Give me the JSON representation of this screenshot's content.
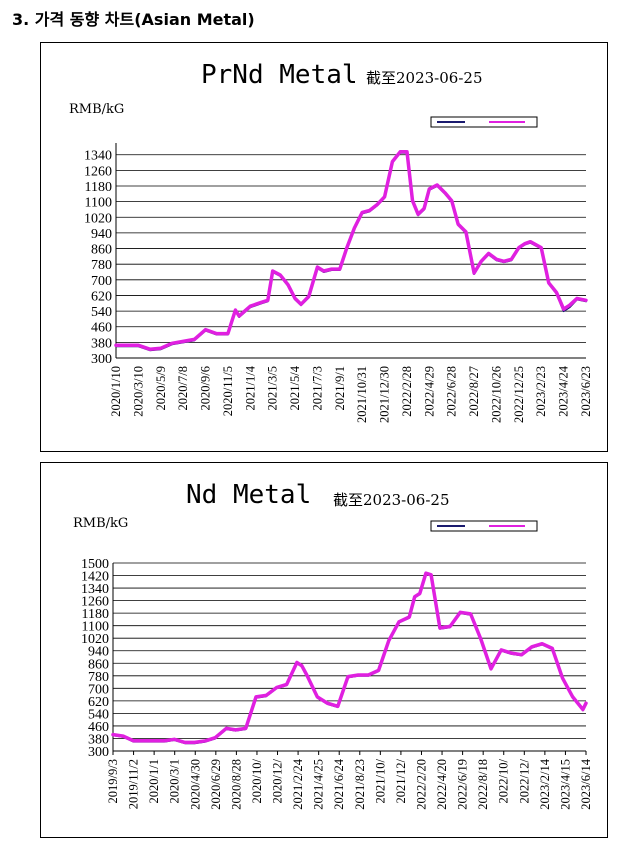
{
  "section": {
    "title": "3. 가격 동향 차트(Asian Metal)"
  },
  "chart_data": [
    {
      "type": "line",
      "title": "PrNd Metal",
      "subtitle": "截至2023-06-25",
      "ylabel": "RMB/kG",
      "ylim": [
        300,
        1400
      ],
      "yticks": [
        300,
        380,
        460,
        540,
        620,
        700,
        780,
        860,
        940,
        1020,
        1100,
        1180,
        1260,
        1340
      ],
      "grid": true,
      "legend_position": "top-right",
      "xtick_labels": [
        "2020/1/10",
        "2020/3/10",
        "2020/5/9",
        "2020/7/8",
        "2020/9/6",
        "2020/11/5",
        "2021/1/4",
        "2021/3/5",
        "2021/5/4",
        "2021/7/3",
        "2021/9/1",
        "2021/10/31",
        "2021/12/30",
        "2022/2/28",
        "2022/4/29",
        "2022/6/28",
        "2022/8/27",
        "2022/10/26",
        "2022/12/25",
        "2023/2/23",
        "2023/4/24",
        "2023/6/23"
      ],
      "series": [
        {
          "name": "",
          "color": "#1a1a6e",
          "x": [
            "2020/1/10",
            "2020/3/10",
            "2020/4/10",
            "2020/5/9",
            "2020/6/8",
            "2020/7/8",
            "2020/8/7",
            "2020/9/6",
            "2020/10/6",
            "2020/11/5",
            "2020/11/25",
            "2020/12/5",
            "2021/1/4",
            "2021/2/3",
            "2021/2/20",
            "2021/3/5",
            "2021/3/25",
            "2021/4/15",
            "2021/5/4",
            "2021/5/20",
            "2021/6/10",
            "2021/7/3",
            "2021/7/20",
            "2021/8/10",
            "2021/9/1",
            "2021/9/20",
            "2021/10/10",
            "2021/10/31",
            "2021/11/20",
            "2021/12/10",
            "2021/12/30",
            "2022/1/20",
            "2022/2/10",
            "2022/2/28",
            "2022/3/15",
            "2022/3/30",
            "2022/4/15",
            "2022/4/29",
            "2022/5/20",
            "2022/6/10",
            "2022/6/28",
            "2022/7/15",
            "2022/8/5",
            "2022/8/27",
            "2022/9/15",
            "2022/10/5",
            "2022/10/26",
            "2022/11/15",
            "2022/12/5",
            "2022/12/25",
            "2023/1/10",
            "2023/1/25",
            "2023/2/23",
            "2023/3/15",
            "2023/4/5",
            "2023/4/24",
            "2023/5/10",
            "2023/5/30",
            "2023/6/23"
          ],
          "values": [
            360,
            360,
            340,
            345,
            370,
            380,
            390,
            440,
            420,
            420,
            540,
            510,
            560,
            580,
            590,
            740,
            720,
            670,
            600,
            570,
            610,
            760,
            740,
            750,
            750,
            860,
            960,
            1040,
            1050,
            1080,
            1120,
            1300,
            1350,
            1350,
            1100,
            1030,
            1060,
            1160,
            1180,
            1140,
            1100,
            980,
            940,
            730,
            790,
            830,
            800,
            790,
            800,
            860,
            880,
            890,
            860,
            680,
            630,
            540,
            560,
            600,
            590
          ]
        },
        {
          "name": "",
          "color": "#e020e0",
          "x": [
            "2020/1/10",
            "2020/3/10",
            "2020/4/10",
            "2020/5/9",
            "2020/6/8",
            "2020/7/8",
            "2020/8/7",
            "2020/9/6",
            "2020/10/6",
            "2020/11/5",
            "2020/11/25",
            "2020/12/5",
            "2021/1/4",
            "2021/2/3",
            "2021/2/20",
            "2021/3/5",
            "2021/3/25",
            "2021/4/15",
            "2021/5/4",
            "2021/5/20",
            "2021/6/10",
            "2021/7/3",
            "2021/7/20",
            "2021/8/10",
            "2021/9/1",
            "2021/9/20",
            "2021/10/10",
            "2021/10/31",
            "2021/11/20",
            "2021/12/10",
            "2021/12/30",
            "2022/1/20",
            "2022/2/10",
            "2022/2/28",
            "2022/3/15",
            "2022/3/30",
            "2022/4/15",
            "2022/4/29",
            "2022/5/20",
            "2022/6/10",
            "2022/6/28",
            "2022/7/15",
            "2022/8/5",
            "2022/8/27",
            "2022/9/15",
            "2022/10/5",
            "2022/10/26",
            "2022/11/15",
            "2022/12/5",
            "2022/12/25",
            "2023/1/10",
            "2023/1/25",
            "2023/2/23",
            "2023/3/15",
            "2023/4/5",
            "2023/4/24",
            "2023/5/10",
            "2023/5/30",
            "2023/6/23"
          ],
          "values": [
            365,
            365,
            345,
            350,
            375,
            385,
            395,
            445,
            425,
            425,
            545,
            515,
            565,
            585,
            595,
            745,
            725,
            675,
            605,
            575,
            615,
            765,
            745,
            755,
            755,
            865,
            965,
            1045,
            1055,
            1085,
            1125,
            1305,
            1355,
            1355,
            1105,
            1035,
            1065,
            1165,
            1185,
            1145,
            1105,
            985,
            945,
            735,
            795,
            835,
            805,
            795,
            805,
            865,
            885,
            895,
            865,
            685,
            635,
            550,
            570,
            605,
            595
          ]
        }
      ]
    },
    {
      "type": "line",
      "title": "Nd Metal",
      "subtitle": "截至2023-06-25",
      "ylabel": "RMB/kG",
      "ylim": [
        300,
        1500
      ],
      "yticks": [
        300,
        380,
        460,
        540,
        620,
        700,
        780,
        860,
        940,
        1020,
        1100,
        1180,
        1260,
        1340,
        1420,
        1500
      ],
      "grid": true,
      "legend_position": "top-right",
      "xtick_labels": [
        "2019/9/3",
        "2019/11/2",
        "2020/1/1",
        "2020/3/1",
        "2020/4/30",
        "2020/6/29",
        "2020/8/28",
        "2020/10/",
        "2020/12/",
        "2021/2/24",
        "2021/4/25",
        "2021/6/24",
        "2021/8/23",
        "2021/10/",
        "2021/12/",
        "2022/2/20",
        "2022/4/20",
        "2022/6/19",
        "2022/8/18",
        "2022/10/",
        "2022/12/",
        "2023/2/14",
        "2023/4/15",
        "2023/6/14"
      ],
      "series": [
        {
          "name": "",
          "color": "#1a1a6e",
          "x": [
            "2019/9/3",
            "2019/10/3",
            "2019/11/2",
            "2020/1/1",
            "2020/2/1",
            "2020/3/1",
            "2020/4/1",
            "2020/4/30",
            "2020/6/1",
            "2020/6/29",
            "2020/8/1",
            "2020/8/28",
            "2020/9/27",
            "2020/10/27",
            "2020/11/26",
            "2020/12/26",
            "2021/1/25",
            "2021/2/24",
            "2021/3/10",
            "2021/3/25",
            "2021/4/25",
            "2021/5/25",
            "2021/6/24",
            "2021/7/24",
            "2021/8/23",
            "2021/9/22",
            "2021/10/22",
            "2021/11/21",
            "2021/12/21",
            "2022/1/20",
            "2022/2/5",
            "2022/2/20",
            "2022/3/10",
            "2022/3/25",
            "2022/4/20",
            "2022/5/20",
            "2022/6/19",
            "2022/7/19",
            "2022/8/18",
            "2022/9/17",
            "2022/10/17",
            "2022/11/16",
            "2022/12/16",
            "2023/1/15",
            "2023/2/14",
            "2023/3/16",
            "2023/4/15",
            "2023/5/15",
            "2023/6/14",
            "2023/6/23"
          ],
          "values": [
            400,
            390,
            360,
            360,
            360,
            370,
            350,
            350,
            360,
            380,
            440,
            430,
            440,
            640,
            650,
            700,
            720,
            860,
            840,
            780,
            640,
            600,
            580,
            770,
            780,
            780,
            810,
            1000,
            1120,
            1150,
            1280,
            1300,
            1430,
            1420,
            1080,
            1090,
            1180,
            1170,
            1010,
            820,
            940,
            920,
            910,
            960,
            980,
            950,
            760,
            640,
            560,
            600
          ]
        },
        {
          "name": "",
          "color": "#e020e0",
          "x": [
            "2019/9/3",
            "2019/10/3",
            "2019/11/2",
            "2020/1/1",
            "2020/2/1",
            "2020/3/1",
            "2020/4/1",
            "2020/4/30",
            "2020/6/1",
            "2020/6/29",
            "2020/8/1",
            "2020/8/28",
            "2020/9/27",
            "2020/10/27",
            "2020/11/26",
            "2020/12/26",
            "2021/1/25",
            "2021/2/24",
            "2021/3/10",
            "2021/3/25",
            "2021/4/25",
            "2021/5/25",
            "2021/6/24",
            "2021/7/24",
            "2021/8/23",
            "2021/9/22",
            "2021/10/22",
            "2021/11/21",
            "2021/12/21",
            "2022/1/20",
            "2022/2/5",
            "2022/2/20",
            "2022/3/10",
            "2022/3/25",
            "2022/4/20",
            "2022/5/20",
            "2022/6/19",
            "2022/7/19",
            "2022/8/18",
            "2022/9/17",
            "2022/10/17",
            "2022/11/16",
            "2022/12/16",
            "2023/1/15",
            "2023/2/14",
            "2023/3/16",
            "2023/4/15",
            "2023/5/15",
            "2023/6/14",
            "2023/6/23"
          ],
          "values": [
            405,
            395,
            365,
            365,
            365,
            375,
            355,
            355,
            365,
            385,
            445,
            435,
            445,
            645,
            655,
            705,
            725,
            865,
            845,
            785,
            645,
            605,
            585,
            775,
            785,
            785,
            815,
            1005,
            1125,
            1155,
            1285,
            1305,
            1435,
            1425,
            1085,
            1095,
            1185,
            1175,
            1015,
            825,
            945,
            925,
            915,
            965,
            985,
            955,
            765,
            645,
            565,
            605
          ]
        }
      ]
    }
  ]
}
